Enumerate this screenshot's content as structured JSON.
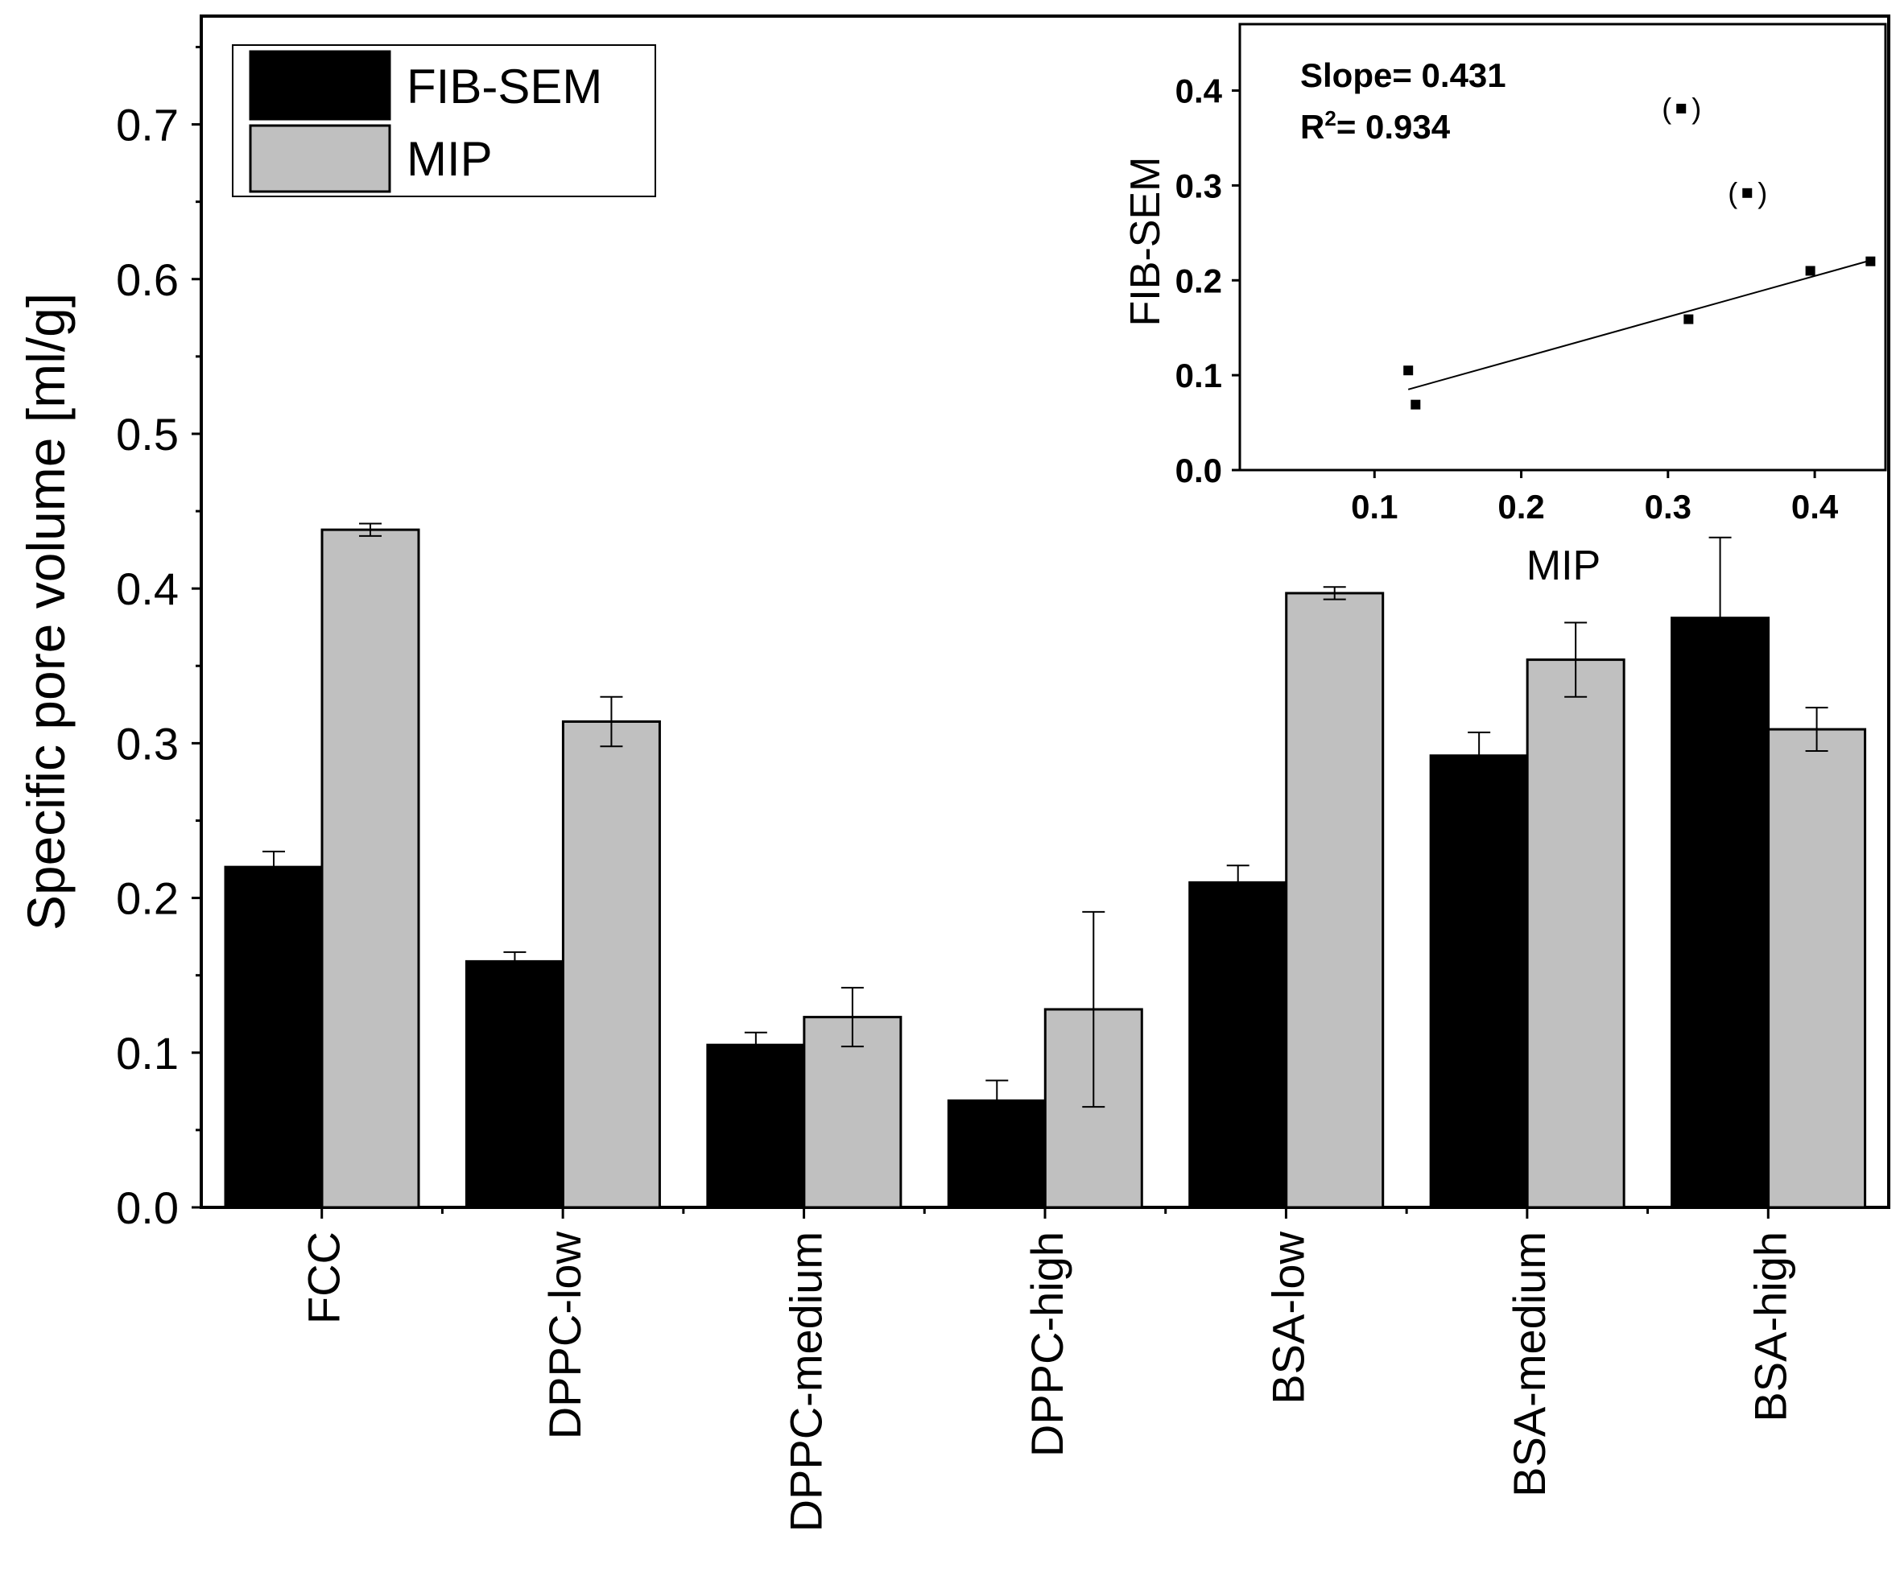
{
  "chart_data": [
    {
      "type": "bar",
      "title": "",
      "xlabel": "",
      "ylabel": "Specific pore volume [ml/g]",
      "ylim": [
        0,
        0.77
      ],
      "yticks": [
        "0.0",
        "0.1",
        "0.2",
        "0.3",
        "0.4",
        "0.5",
        "0.6",
        "0.7"
      ],
      "categories": [
        "FCC",
        "DPPC-low",
        "DPPC-medium",
        "DPPC-high",
        "BSA-low",
        "BSA-medium",
        "BSA-high"
      ],
      "series": [
        {
          "name": "FIB-SEM",
          "color": "#000000",
          "values": [
            0.22,
            0.159,
            0.105,
            0.069,
            0.21,
            0.292,
            0.381
          ],
          "errors": [
            0.01,
            0.006,
            0.008,
            0.013,
            0.011,
            0.015,
            0.052
          ]
        },
        {
          "name": "MIP",
          "color": "#c0c0c0",
          "values": [
            0.438,
            0.314,
            0.123,
            0.128,
            0.397,
            0.354,
            0.309
          ],
          "errors": [
            0.004,
            0.016,
            0.019,
            0.063,
            0.004,
            0.024,
            0.014
          ]
        }
      ],
      "legend": {
        "placement": "top-left",
        "entries": [
          "FIB-SEM",
          "MIP"
        ]
      }
    },
    {
      "type": "scatter",
      "title": "",
      "xlabel": "MIP",
      "ylabel": "FIB-SEM",
      "xlim": [
        0.0,
        0.44
      ],
      "ylim": [
        0.0,
        0.47
      ],
      "xticks": [
        "0.1",
        "0.2",
        "0.3",
        "0.4"
      ],
      "yticks": [
        "0.0",
        "0.1",
        "0.2",
        "0.3",
        "0.4"
      ],
      "points": [
        {
          "x": 0.123,
          "y": 0.105,
          "outlier": false
        },
        {
          "x": 0.128,
          "y": 0.069,
          "outlier": false
        },
        {
          "x": 0.314,
          "y": 0.159,
          "outlier": false
        },
        {
          "x": 0.397,
          "y": 0.21,
          "outlier": false
        },
        {
          "x": 0.438,
          "y": 0.22,
          "outlier": false
        },
        {
          "x": 0.309,
          "y": 0.381,
          "outlier": true
        },
        {
          "x": 0.354,
          "y": 0.292,
          "outlier": true
        }
      ],
      "fit_line": {
        "x": [
          0.123,
          0.438
        ],
        "y": [
          0.085,
          0.221
        ]
      },
      "annotations": {
        "slope": "Slope= 0.431",
        "r2_prefix": "R",
        "r2_sup": "2",
        "r2_value": "= 0.934"
      }
    }
  ]
}
